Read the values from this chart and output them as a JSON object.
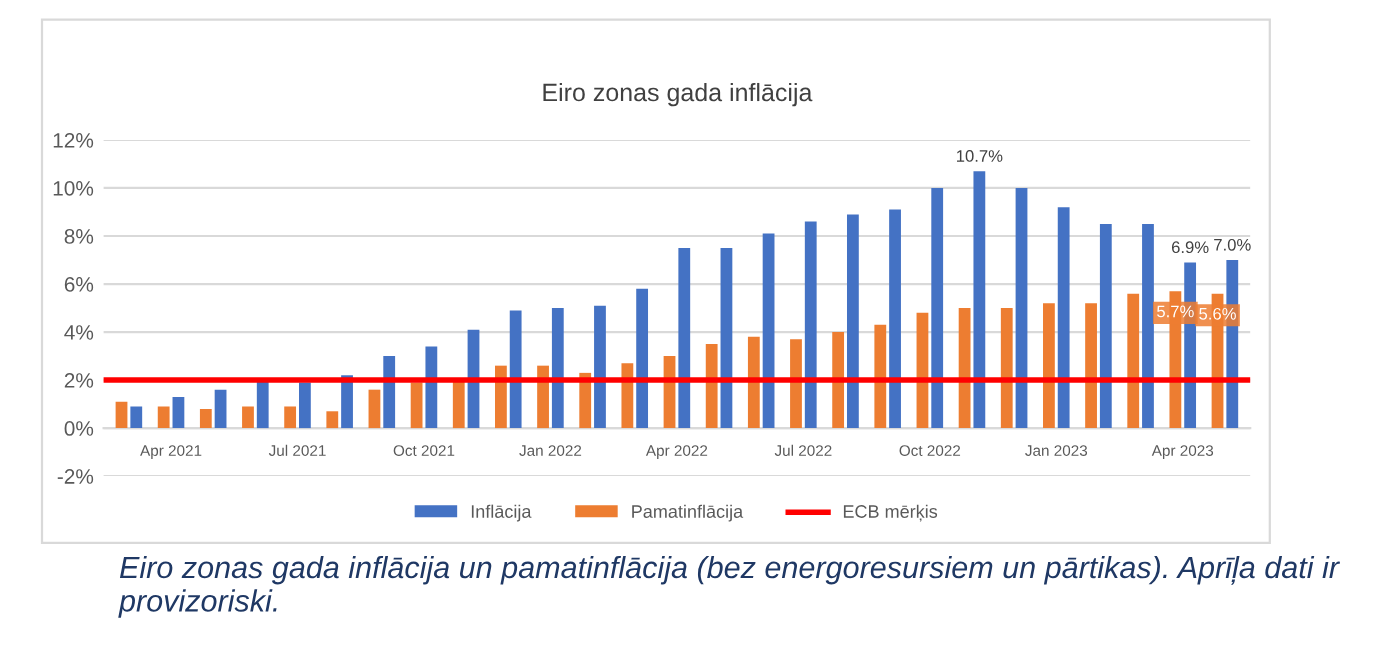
{
  "chart_data": {
    "type": "bar",
    "title": "Eiro zonas gada inflācija",
    "categories": [
      null,
      "Apr 2021",
      null,
      null,
      "Jul 2021",
      null,
      null,
      "Oct 2021",
      null,
      null,
      "Jan 2022",
      null,
      null,
      "Apr 2022",
      null,
      null,
      "Jul 2022",
      null,
      null,
      "Oct 2022",
      null,
      null,
      "Jan 2023",
      null,
      null,
      "Apr 2023",
      null
    ],
    "series": [
      {
        "name": "Inflācija",
        "color": "#4472c4",
        "values": [
          0.9,
          1.3,
          1.6,
          2.0,
          1.9,
          2.2,
          3.0,
          3.4,
          4.1,
          4.9,
          5.0,
          5.1,
          5.8,
          7.5,
          7.5,
          8.1,
          8.6,
          8.9,
          9.1,
          10.0,
          10.7,
          10.0,
          9.2,
          8.5,
          8.5,
          6.9,
          7.0
        ],
        "value_labels": [
          null,
          null,
          null,
          null,
          null,
          null,
          null,
          null,
          null,
          null,
          null,
          null,
          null,
          null,
          null,
          null,
          null,
          null,
          null,
          null,
          "10.7%",
          null,
          null,
          null,
          null,
          "6.9%",
          "7.0%"
        ]
      },
      {
        "name": "Pamatinflācija",
        "color": "#ed7d31",
        "values": [
          1.1,
          0.9,
          0.8,
          0.9,
          0.9,
          0.7,
          1.6,
          1.9,
          2.0,
          2.6,
          2.6,
          2.3,
          2.7,
          3.0,
          3.5,
          3.8,
          3.7,
          4.0,
          4.3,
          4.8,
          5.0,
          5.0,
          5.2,
          5.2,
          5.6,
          5.7,
          5.6
        ],
        "value_labels": [
          null,
          null,
          null,
          null,
          null,
          null,
          null,
          null,
          null,
          null,
          null,
          null,
          null,
          null,
          null,
          null,
          null,
          null,
          null,
          null,
          null,
          null,
          null,
          null,
          null,
          "5.7%",
          "5.6%"
        ]
      }
    ],
    "ref_lines": [
      {
        "axis": "y",
        "value": 2,
        "label": "ECB mērķis",
        "color": "#ff0000"
      }
    ],
    "ylim": [
      -2,
      12
    ],
    "yticks": [
      {
        "value": -2,
        "label": "-2%"
      },
      {
        "value": 0,
        "label": "0%"
      },
      {
        "value": 2,
        "label": "2%"
      },
      {
        "value": 4,
        "label": "4%"
      },
      {
        "value": 6,
        "label": "6%"
      },
      {
        "value": 8,
        "label": "8%"
      },
      {
        "value": 10,
        "label": "10%"
      },
      {
        "value": 12,
        "label": "12%"
      }
    ],
    "grid": "y",
    "legend": "bottom",
    "annotations": [
      "Eiro zonas gada inflācija un pamatinflācija (bez energoresursiem un pārtikas). Aprīļa dati ir provizoriski."
    ]
  }
}
